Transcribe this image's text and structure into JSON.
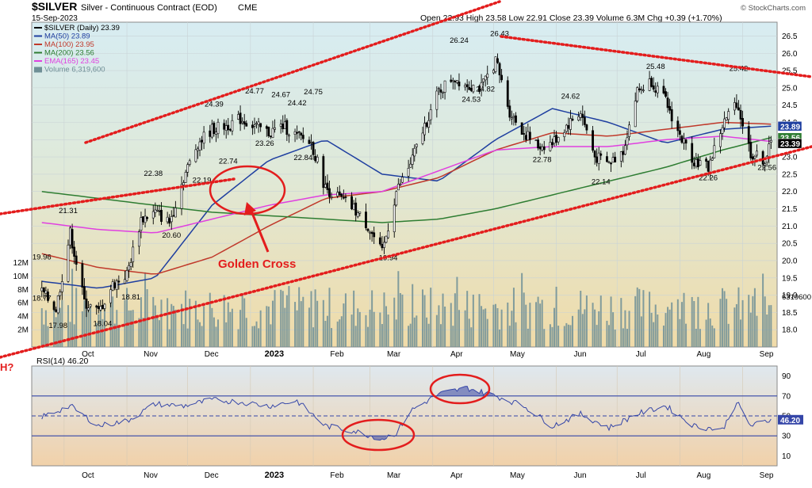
{
  "header": {
    "symbol": "$SILVER",
    "description": "Silver - Continuous Contract (EOD)",
    "exchange": "CME",
    "date": "15-Sep-2023",
    "ohlc": "Open 22.93  High 23.58  Low 22.91  Close 23.39  Volume 6.3M  Chg +0.39 (+1.70%)",
    "watermark": "© StockCharts.com"
  },
  "colors": {
    "price_up": "#000000",
    "price_down": "#000000",
    "ma50": "#1f3fa0",
    "ma100": "#c0392b",
    "ma200": "#2e7d32",
    "ema165": "#e040e0",
    "volume": "#6f8f96",
    "trendline": "#e31d1d",
    "rsi_line": "#3546a8",
    "annotation": "#e31d1d"
  },
  "legend": [
    {
      "key": "price",
      "label": "$SILVER (Daily) 23.39",
      "color": "#000000"
    },
    {
      "key": "ma50",
      "label": "MA(50) 23.89",
      "color": "#1f3fa0"
    },
    {
      "key": "ma100",
      "label": "MA(100) 23.95",
      "color": "#c0392b"
    },
    {
      "key": "ma200",
      "label": "MA(200) 23.56",
      "color": "#2e7d32"
    },
    {
      "key": "ema165",
      "label": "EMA(165) 23.45",
      "color": "#e040e0"
    },
    {
      "key": "volume",
      "label": "Volume 6,319,600",
      "color": "#6f8f96"
    }
  ],
  "annotations": {
    "golden_cross": "Golden Cross",
    "h_marker": "H?"
  },
  "chart_data": [
    {
      "type": "line",
      "panel": "price",
      "x_labels": [
        "Oct",
        "Nov",
        "Dec",
        "2023",
        "Feb",
        "Mar",
        "Apr",
        "May",
        "Jun",
        "Jul",
        "Aug",
        "Sep"
      ],
      "x_months": [
        "2022-10",
        "2022-11",
        "2022-12",
        "2023-01",
        "2023-02",
        "2023-03",
        "2023-04",
        "2023-05",
        "2023-06",
        "2023-07",
        "2023-08",
        "2023-09"
      ],
      "ylim": [
        17.5,
        26.9
      ],
      "yticks": [
        18.0,
        18.5,
        19.0,
        19.5,
        20.0,
        20.5,
        21.0,
        21.5,
        22.0,
        22.5,
        23.0,
        23.5,
        24.0,
        24.5,
        25.0,
        25.5,
        26.0,
        26.5
      ],
      "volume_ticks": [
        "2M",
        "4M",
        "6M",
        "8M",
        "10M",
        "12M"
      ],
      "volume_last": "6319600",
      "right_value_tags": [
        "23.89",
        "23.56",
        "23.39"
      ],
      "series": [
        {
          "key": "price",
          "x": [
            "2022-09-20",
            "2022-09-27",
            "2022-10-04",
            "2022-10-11",
            "2022-10-18",
            "2022-10-25",
            "2022-11-01",
            "2022-11-08",
            "2022-11-15",
            "2022-11-22",
            "2022-11-29",
            "2022-12-06",
            "2022-12-13",
            "2022-12-20",
            "2022-12-27",
            "2023-01-03",
            "2023-01-10",
            "2023-01-17",
            "2023-01-24",
            "2023-01-31",
            "2023-02-07",
            "2023-02-14",
            "2023-02-21",
            "2023-02-28",
            "2023-03-07",
            "2023-03-14",
            "2023-03-21",
            "2023-03-28",
            "2023-04-04",
            "2023-04-11",
            "2023-04-18",
            "2023-04-25",
            "2023-05-02",
            "2023-05-09",
            "2023-05-16",
            "2023-05-23",
            "2023-05-30",
            "2023-06-06",
            "2023-06-13",
            "2023-06-20",
            "2023-06-27",
            "2023-07-04",
            "2023-07-11",
            "2023-07-18",
            "2023-07-25",
            "2023-08-01",
            "2023-08-08",
            "2023-08-15",
            "2023-08-22",
            "2023-08-29",
            "2023-09-05",
            "2023-09-12",
            "2023-09-15"
          ],
          "values": [
            19.1,
            18.6,
            20.8,
            18.8,
            18.5,
            19.3,
            19.6,
            21.2,
            21.4,
            21.1,
            22.4,
            23.4,
            23.8,
            23.9,
            24.1,
            23.9,
            23.7,
            23.9,
            23.6,
            23.4,
            22.1,
            21.8,
            21.5,
            21.0,
            20.2,
            22.0,
            22.8,
            23.9,
            24.9,
            25.3,
            25.1,
            25.0,
            25.8,
            24.3,
            23.7,
            23.3,
            23.4,
            23.9,
            24.3,
            23.0,
            22.8,
            23.2,
            24.9,
            25.2,
            24.6,
            23.6,
            22.9,
            22.7,
            23.9,
            24.6,
            23.1,
            22.9,
            23.39
          ]
        },
        {
          "key": "ma50",
          "x": [
            "2022-09-20",
            "2022-10-18",
            "2022-11-15",
            "2022-12-13",
            "2023-01-10",
            "2023-02-07",
            "2023-03-07",
            "2023-04-04",
            "2023-05-02",
            "2023-05-30",
            "2023-06-27",
            "2023-07-25",
            "2023-08-22",
            "2023-09-15"
          ],
          "values": [
            19.4,
            19.2,
            19.5,
            21.6,
            22.9,
            23.5,
            22.5,
            22.3,
            23.5,
            24.4,
            24.0,
            23.4,
            23.8,
            23.89
          ]
        },
        {
          "key": "ma100",
          "x": [
            "2022-09-20",
            "2022-10-18",
            "2022-11-15",
            "2022-12-13",
            "2023-01-10",
            "2023-02-07",
            "2023-03-07",
            "2023-04-04",
            "2023-05-02",
            "2023-05-30",
            "2023-06-27",
            "2023-07-25",
            "2023-08-22",
            "2023-09-15"
          ],
          "values": [
            20.2,
            19.8,
            19.6,
            20.1,
            21.0,
            21.8,
            22.0,
            22.4,
            23.2,
            23.7,
            23.6,
            23.8,
            24.0,
            23.95
          ]
        },
        {
          "key": "ma200",
          "x": [
            "2022-09-20",
            "2022-10-18",
            "2022-11-15",
            "2022-12-13",
            "2023-01-10",
            "2023-02-07",
            "2023-03-07",
            "2023-04-04",
            "2023-05-02",
            "2023-05-30",
            "2023-06-27",
            "2023-07-25",
            "2023-08-22",
            "2023-09-15"
          ],
          "values": [
            22.0,
            21.8,
            21.6,
            21.4,
            21.3,
            21.2,
            21.1,
            21.2,
            21.5,
            21.9,
            22.3,
            22.7,
            23.2,
            23.56
          ]
        },
        {
          "key": "ema165",
          "x": [
            "2022-09-20",
            "2022-10-18",
            "2022-11-15",
            "2022-12-13",
            "2023-01-10",
            "2023-02-07",
            "2023-03-07",
            "2023-04-04",
            "2023-05-02",
            "2023-05-30",
            "2023-06-27",
            "2023-07-25",
            "2023-08-22",
            "2023-09-15"
          ],
          "values": [
            21.1,
            20.9,
            20.8,
            21.2,
            21.6,
            21.9,
            22.0,
            22.6,
            23.2,
            23.3,
            23.3,
            23.5,
            23.6,
            23.45
          ]
        }
      ],
      "point_labels": [
        {
          "x": "2022-10-03",
          "y": 21.31,
          "label": "21.31"
        },
        {
          "x": "2022-09-20",
          "y": 19.96,
          "label": "19.96"
        },
        {
          "x": "2022-09-20",
          "y": 18.77,
          "label": "18.77"
        },
        {
          "x": "2022-09-28",
          "y": 17.98,
          "label": "17.98"
        },
        {
          "x": "2022-10-20",
          "y": 18.04,
          "label": "18.04"
        },
        {
          "x": "2022-11-03",
          "y": 18.81,
          "label": "18.81"
        },
        {
          "x": "2022-11-14",
          "y": 22.38,
          "label": "22.38"
        },
        {
          "x": "2022-11-23",
          "y": 20.6,
          "label": "20.60"
        },
        {
          "x": "2022-12-08",
          "y": 22.19,
          "label": "22.19"
        },
        {
          "x": "2022-12-14",
          "y": 24.39,
          "label": "24.39"
        },
        {
          "x": "2022-12-21",
          "y": 22.74,
          "label": "22.74"
        },
        {
          "x": "2023-01-03",
          "y": 24.77,
          "label": "24.77"
        },
        {
          "x": "2023-01-08",
          "y": 23.26,
          "label": "23.26"
        },
        {
          "x": "2023-01-16",
          "y": 24.67,
          "label": "24.67"
        },
        {
          "x": "2023-01-24",
          "y": 24.42,
          "label": "24.42"
        },
        {
          "x": "2023-01-27",
          "y": 22.84,
          "label": "22.84"
        },
        {
          "x": "2023-02-01",
          "y": 24.75,
          "label": "24.75"
        },
        {
          "x": "2023-03-10",
          "y": 19.94,
          "label": "19.94"
        },
        {
          "x": "2023-04-14",
          "y": 26.24,
          "label": "26.24"
        },
        {
          "x": "2023-04-20",
          "y": 24.53,
          "label": "24.53"
        },
        {
          "x": "2023-04-27",
          "y": 24.82,
          "label": "24.82"
        },
        {
          "x": "2023-05-04",
          "y": 26.43,
          "label": "26.43"
        },
        {
          "x": "2023-05-25",
          "y": 22.78,
          "label": "22.78"
        },
        {
          "x": "2023-06-08",
          "y": 24.62,
          "label": "24.62"
        },
        {
          "x": "2023-06-23",
          "y": 22.14,
          "label": "22.14"
        },
        {
          "x": "2023-07-20",
          "y": 25.48,
          "label": "25.48"
        },
        {
          "x": "2023-08-15",
          "y": 22.26,
          "label": "22.26"
        },
        {
          "x": "2023-08-30",
          "y": 25.42,
          "label": "25.42"
        },
        {
          "x": "2023-09-13",
          "y": 22.56,
          "label": "22.56"
        }
      ]
    },
    {
      "type": "line",
      "panel": "rsi",
      "title": "RSI(14) 46.20",
      "ylim": [
        0,
        100
      ],
      "yticks": [
        10,
        30,
        50,
        70,
        90
      ],
      "reference_lines": [
        30,
        50,
        70
      ],
      "last_value": "46.20",
      "series": [
        {
          "key": "rsi",
          "x": [
            "2022-09-20",
            "2022-10-04",
            "2022-10-18",
            "2022-11-01",
            "2022-11-15",
            "2022-11-29",
            "2022-12-13",
            "2022-12-27",
            "2023-01-10",
            "2023-01-24",
            "2023-02-07",
            "2023-02-21",
            "2023-03-07",
            "2023-03-14",
            "2023-03-21",
            "2023-04-04",
            "2023-04-18",
            "2023-05-02",
            "2023-05-16",
            "2023-05-30",
            "2023-06-13",
            "2023-06-27",
            "2023-07-11",
            "2023-07-25",
            "2023-08-08",
            "2023-08-22",
            "2023-08-29",
            "2023-09-05",
            "2023-09-15"
          ],
          "values": [
            49,
            60,
            40,
            45,
            62,
            60,
            66,
            64,
            60,
            65,
            40,
            35,
            27,
            33,
            55,
            72,
            78,
            70,
            60,
            40,
            52,
            38,
            52,
            60,
            40,
            36,
            64,
            40,
            46.2
          ]
        }
      ]
    }
  ]
}
